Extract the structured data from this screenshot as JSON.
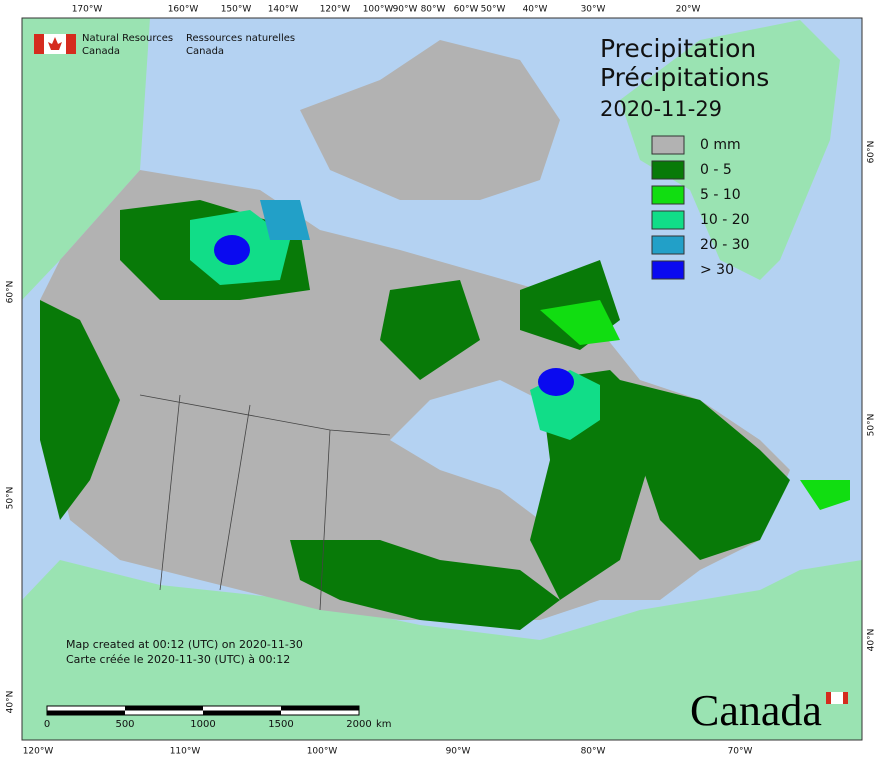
{
  "header": {
    "logo_en": [
      "Natural Resources",
      "Canada"
    ],
    "logo_fr": [
      "Ressources naturelles",
      "Canada"
    ]
  },
  "title": [
    "Precipitation",
    "Précipitations"
  ],
  "date": "2020-11-29",
  "legend": [
    {
      "label": "0 mm",
      "color": "#b2b2b2"
    },
    {
      "label": "0 - 5",
      "color": "#087a08"
    },
    {
      "label": "5 - 10",
      "color": "#11dd11"
    },
    {
      "label": "10 - 20",
      "color": "#11dd88"
    },
    {
      "label": "20 - 30",
      "color": "#22a0c8"
    },
    {
      "label": "> 30",
      "color": "#0a0af0"
    }
  ],
  "note": [
    "Map created at 00:12 (UTC) on 2020-11-30",
    "Carte créée le 2020-11-30 (UTC) à 00:12"
  ],
  "scale": {
    "labels": [
      "0",
      "500",
      "1000",
      "1500",
      "2000"
    ],
    "unit": "km"
  },
  "wordmark": "Canada",
  "axes": {
    "top": [
      "170°W",
      "160°W",
      "150°W",
      "140°W",
      "120°W",
      "100°W",
      "90°W",
      "80°W",
      "60°W",
      "50°W",
      "40°W",
      "30°W",
      "20°W"
    ],
    "bottom": [
      "120°W",
      "110°W",
      "100°W",
      "90°W",
      "80°W",
      "70°W"
    ],
    "left": [
      "60°N",
      "50°N",
      "40°N"
    ],
    "right": [
      "60°N",
      "50°N",
      "40°N"
    ]
  }
}
